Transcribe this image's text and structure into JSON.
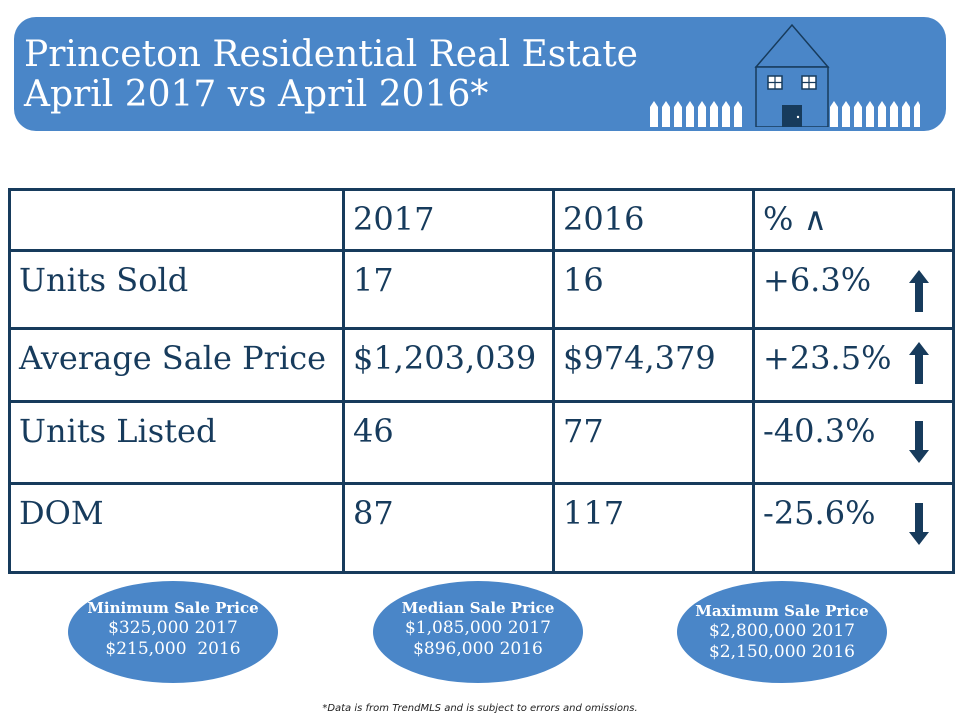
{
  "banner": {
    "title_line1": "Princeton Residential Real Estate",
    "title_line2": "April 2017 vs April 2016*",
    "background_color": "#4a86c8",
    "icon": "house-with-picket-fence-icon"
  },
  "table": {
    "headers": [
      "",
      "2017",
      "2016",
      "% ∧"
    ],
    "rows": [
      {
        "label": "Units Sold",
        "v2017": "17",
        "v2016": "16",
        "pct": "+6.3%",
        "trend": "up-arrow-icon"
      },
      {
        "label": "Average Sale Price",
        "v2017": "$1,203,039",
        "v2016": "$974,379",
        "pct": "+23.5%",
        "trend": "up-arrow-icon"
      },
      {
        "label": "Units Listed",
        "v2017": "46",
        "v2016": "77",
        "pct": "-40.3%",
        "trend": "down-arrow-icon"
      },
      {
        "label": "DOM",
        "v2017": "87",
        "v2016": "117",
        "pct": "-25.6%",
        "trend": "down-arrow-icon"
      }
    ]
  },
  "summary": {
    "min": {
      "title": "Minimum Sale Price",
      "line1": "$325,000 2017",
      "line2": "$215,000  2016"
    },
    "median": {
      "title": "Median Sale Price",
      "line1": "$1,085,000 2017",
      "line2": "$896,000 2016"
    },
    "max": {
      "title": "Maximum Sale Price",
      "line1": "$2,800,000 2017",
      "line2": "$2,150,000 2016"
    }
  },
  "footnote": "*Data is from TrendMLS and is subject to errors and omissions.",
  "colors": {
    "accent": "#4a86c8",
    "text": "#173b5c"
  }
}
